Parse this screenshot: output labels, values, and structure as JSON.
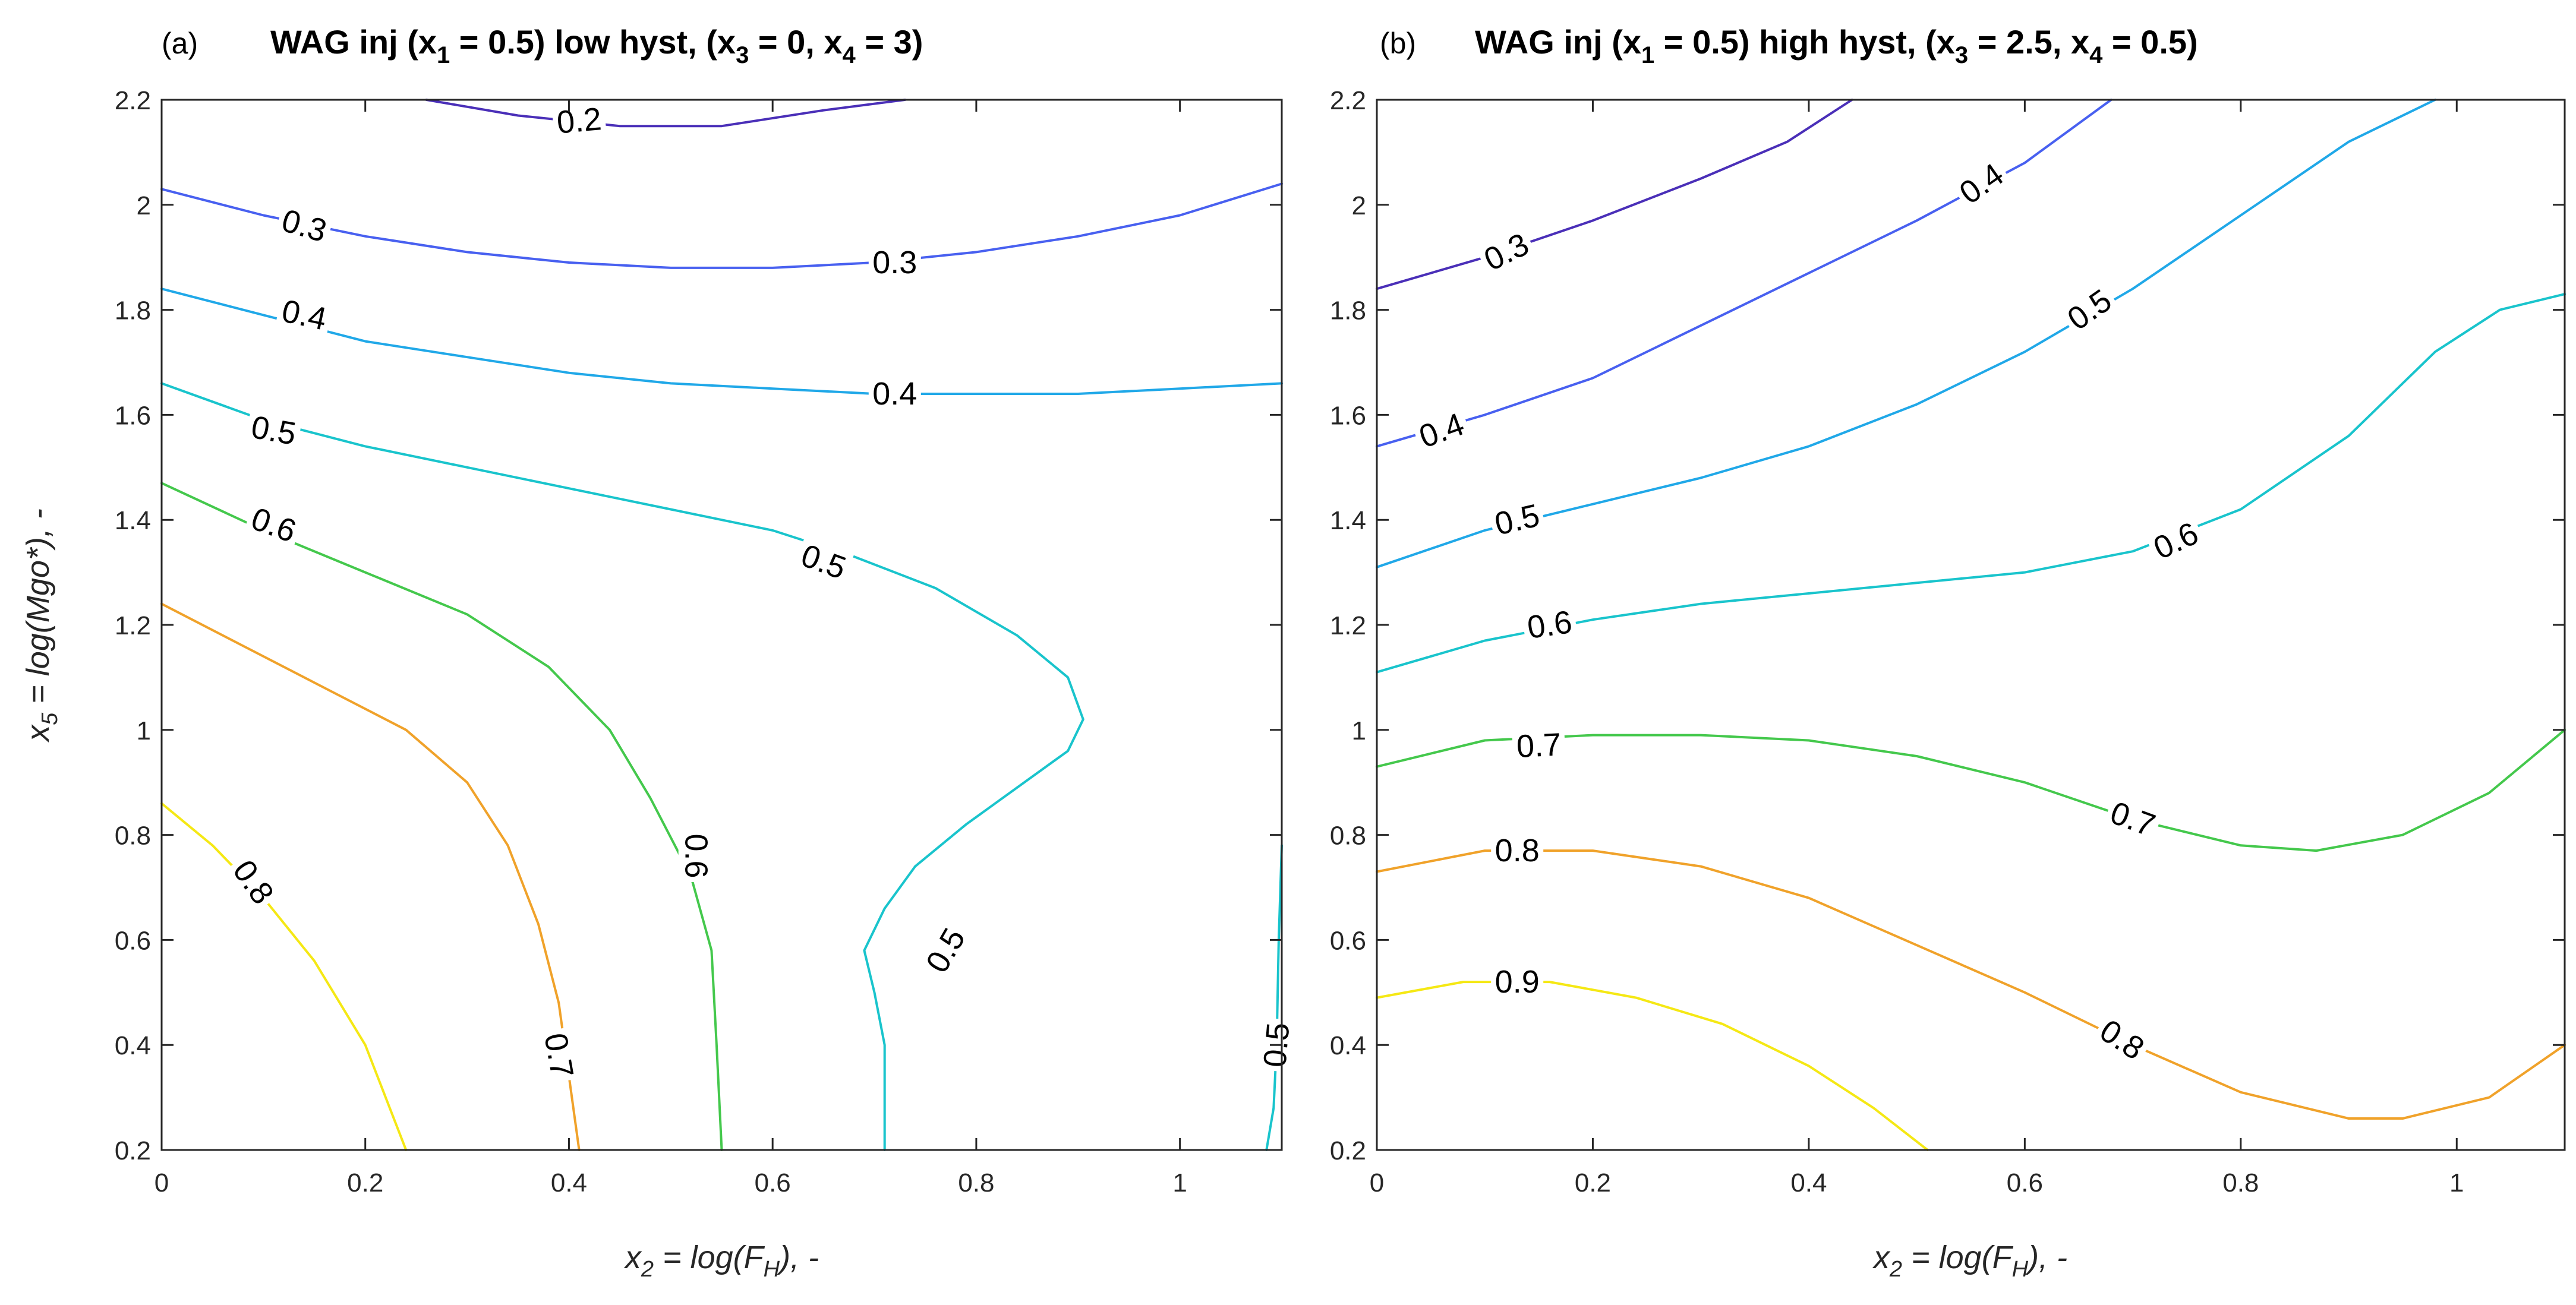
{
  "chart_data": [
    {
      "type": "contour",
      "panel_letter": "(a)",
      "title_parts": [
        "WAG inj (x",
        "1",
        " = 0.5) low hyst, (x",
        "3",
        " = 0, x",
        "4",
        " = 3)"
      ],
      "xlabel_parts": [
        "x",
        "2",
        " = log(F",
        "H",
        "), -"
      ],
      "ylabel_parts": [
        "x",
        "5",
        " = log(Mgo*), -"
      ],
      "xlim": [
        0,
        1.1
      ],
      "ylim": [
        0.2,
        2.2
      ],
      "xticks": [
        0,
        0.2,
        0.4,
        0.6,
        0.8,
        1
      ],
      "xtick_labels": [
        "0",
        "0.2",
        "0.4",
        "0.6",
        "0.8",
        "1"
      ],
      "yticks": [
        0.2,
        0.4,
        0.6,
        0.8,
        1,
        1.2,
        1.4,
        1.6,
        1.8,
        2,
        2.2
      ],
      "ytick_labels": [
        "0.2",
        "0.4",
        "0.6",
        "0.8",
        "1",
        "1.2",
        "1.4",
        "1.6",
        "1.8",
        "2",
        "2.2"
      ],
      "levels": [
        {
          "level": 0.2,
          "color": "#4a2fb8",
          "points": [
            [
              0.26,
              2.2
            ],
            [
              0.35,
              2.17
            ],
            [
              0.45,
              2.15
            ],
            [
              0.55,
              2.15
            ],
            [
              0.65,
              2.18
            ],
            [
              0.73,
              2.2
            ]
          ],
          "labels": [
            {
              "text": "0.2",
              "x": 0.41,
              "y": 2.16,
              "angle": -5
            }
          ]
        },
        {
          "level": 0.3,
          "color": "#4860f0",
          "points": [
            [
              0,
              2.03
            ],
            [
              0.1,
              1.98
            ],
            [
              0.2,
              1.94
            ],
            [
              0.3,
              1.91
            ],
            [
              0.4,
              1.89
            ],
            [
              0.5,
              1.88
            ],
            [
              0.6,
              1.88
            ],
            [
              0.7,
              1.89
            ],
            [
              0.8,
              1.91
            ],
            [
              0.9,
              1.94
            ],
            [
              1.0,
              1.98
            ],
            [
              1.1,
              2.04
            ]
          ],
          "labels": [
            {
              "text": "0.3",
              "x": 0.14,
              "y": 1.96,
              "angle": 16
            },
            {
              "text": "0.3",
              "x": 0.72,
              "y": 1.89,
              "angle": 0
            }
          ]
        },
        {
          "level": 0.4,
          "color": "#20a8e8",
          "points": [
            [
              0,
              1.84
            ],
            [
              0.1,
              1.79
            ],
            [
              0.2,
              1.74
            ],
            [
              0.3,
              1.71
            ],
            [
              0.4,
              1.68
            ],
            [
              0.5,
              1.66
            ],
            [
              0.6,
              1.65
            ],
            [
              0.7,
              1.64
            ],
            [
              0.8,
              1.64
            ],
            [
              0.9,
              1.64
            ],
            [
              1.0,
              1.65
            ],
            [
              1.1,
              1.66
            ]
          ],
          "labels": [
            {
              "text": "0.4",
              "x": 0.14,
              "y": 1.79,
              "angle": 12
            },
            {
              "text": "0.4",
              "x": 0.72,
              "y": 1.64,
              "angle": 0
            }
          ]
        },
        {
          "level": 0.5,
          "color": "#19c4cc",
          "points": [
            [
              0,
              1.66
            ],
            [
              0.1,
              1.59
            ],
            [
              0.2,
              1.54
            ],
            [
              0.3,
              1.5
            ],
            [
              0.4,
              1.46
            ],
            [
              0.5,
              1.42
            ],
            [
              0.6,
              1.38
            ],
            [
              0.68,
              1.33
            ],
            [
              0.76,
              1.27
            ],
            [
              0.84,
              1.18
            ],
            [
              0.89,
              1.1
            ],
            [
              0.905,
              1.02
            ],
            [
              0.89,
              0.96
            ],
            [
              0.84,
              0.89
            ],
            [
              0.79,
              0.82
            ],
            [
              0.74,
              0.74
            ],
            [
              0.71,
              0.66
            ],
            [
              0.69,
              0.58
            ],
            [
              0.7,
              0.5
            ],
            [
              0.71,
              0.4
            ],
            [
              0.71,
              0.3
            ],
            [
              0.71,
              0.2
            ]
          ],
          "labels": [
            {
              "text": "0.5",
              "x": 0.11,
              "y": 1.57,
              "angle": 10
            },
            {
              "text": "0.5",
              "x": 0.65,
              "y": 1.32,
              "angle": 20
            },
            {
              "text": "0.5",
              "x": 0.77,
              "y": 0.58,
              "angle": -60
            }
          ]
        },
        {
          "level": 0.5,
          "color": "#19c4cc",
          "points": [
            [
              1.1,
              0.78
            ],
            [
              1.097,
              0.6
            ],
            [
              1.095,
              0.4
            ],
            [
              1.092,
              0.28
            ],
            [
              1.085,
              0.2
            ]
          ],
          "labels": [
            {
              "text": "0.5",
              "x": 1.095,
              "y": 0.4,
              "angle": -85
            }
          ]
        },
        {
          "level": 0.6,
          "color": "#44c84c",
          "points": [
            [
              0,
              1.47
            ],
            [
              0.1,
              1.38
            ],
            [
              0.2,
              1.3
            ],
            [
              0.3,
              1.22
            ],
            [
              0.38,
              1.12
            ],
            [
              0.44,
              1.0
            ],
            [
              0.48,
              0.87
            ],
            [
              0.52,
              0.72
            ],
            [
              0.54,
              0.58
            ],
            [
              0.545,
              0.4
            ],
            [
              0.55,
              0.2
            ]
          ],
          "labels": [
            {
              "text": "0.6",
              "x": 0.11,
              "y": 1.39,
              "angle": 20
            },
            {
              "text": "0.6",
              "x": 0.525,
              "y": 0.76,
              "angle": 90
            }
          ]
        },
        {
          "level": 0.7,
          "color": "#f0a22a",
          "points": [
            [
              0,
              1.24
            ],
            [
              0.08,
              1.16
            ],
            [
              0.16,
              1.08
            ],
            [
              0.24,
              1.0
            ],
            [
              0.3,
              0.9
            ],
            [
              0.34,
              0.78
            ],
            [
              0.37,
              0.63
            ],
            [
              0.39,
              0.48
            ],
            [
              0.4,
              0.34
            ],
            [
              0.41,
              0.2
            ]
          ],
          "labels": [
            {
              "text": "0.7",
              "x": 0.39,
              "y": 0.38,
              "angle": 80
            }
          ]
        },
        {
          "level": 0.8,
          "color": "#f5e814",
          "points": [
            [
              0,
              0.86
            ],
            [
              0.05,
              0.78
            ],
            [
              0.1,
              0.68
            ],
            [
              0.15,
              0.56
            ],
            [
              0.2,
              0.4
            ],
            [
              0.24,
              0.2
            ]
          ],
          "labels": [
            {
              "text": "0.8",
              "x": 0.09,
              "y": 0.71,
              "angle": 55
            }
          ]
        }
      ]
    },
    {
      "type": "contour",
      "panel_letter": "(b)",
      "title_parts": [
        "WAG inj (x",
        "1",
        " = 0.5) high hyst, (x",
        "3",
        " = 2.5, x",
        "4",
        " = 0.5)"
      ],
      "xlabel_parts": [
        "x",
        "2",
        " = log(F",
        "H",
        "), -"
      ],
      "xlim": [
        0,
        1.1
      ],
      "ylim": [
        0.2,
        2.2
      ],
      "xticks": [
        0,
        0.2,
        0.4,
        0.6,
        0.8,
        1
      ],
      "xtick_labels": [
        "0",
        "0.2",
        "0.4",
        "0.6",
        "0.8",
        "1"
      ],
      "yticks": [
        0.2,
        0.4,
        0.6,
        0.8,
        1,
        1.2,
        1.4,
        1.6,
        1.8,
        2,
        2.2
      ],
      "ytick_labels": [
        "0.2",
        "0.4",
        "0.6",
        "0.8",
        "1",
        "1.2",
        "1.4",
        "1.6",
        "1.8",
        "2",
        "2.2"
      ],
      "levels": [
        {
          "level": 0.3,
          "color": "#4a2fb8",
          "points": [
            [
              0,
              1.84
            ],
            [
              0.1,
              1.9
            ],
            [
              0.2,
              1.97
            ],
            [
              0.3,
              2.05
            ],
            [
              0.38,
              2.12
            ],
            [
              0.44,
              2.2
            ]
          ],
          "labels": [
            {
              "text": "0.3",
              "x": 0.12,
              "y": 1.91,
              "angle": -26
            }
          ]
        },
        {
          "level": 0.4,
          "color": "#4860f0",
          "points": [
            [
              0,
              1.54
            ],
            [
              0.1,
              1.6
            ],
            [
              0.2,
              1.67
            ],
            [
              0.3,
              1.77
            ],
            [
              0.4,
              1.87
            ],
            [
              0.5,
              1.97
            ],
            [
              0.6,
              2.08
            ],
            [
              0.68,
              2.2
            ]
          ],
          "labels": [
            {
              "text": "0.4",
              "x": 0.06,
              "y": 1.57,
              "angle": -20
            },
            {
              "text": "0.4",
              "x": 0.56,
              "y": 2.04,
              "angle": -35
            }
          ]
        },
        {
          "level": 0.5,
          "color": "#20a8e8",
          "points": [
            [
              0,
              1.31
            ],
            [
              0.1,
              1.38
            ],
            [
              0.2,
              1.43
            ],
            [
              0.3,
              1.48
            ],
            [
              0.4,
              1.54
            ],
            [
              0.5,
              1.62
            ],
            [
              0.6,
              1.72
            ],
            [
              0.7,
              1.84
            ],
            [
              0.8,
              1.98
            ],
            [
              0.9,
              2.12
            ],
            [
              0.98,
              2.2
            ]
          ],
          "labels": [
            {
              "text": "0.5",
              "x": 0.13,
              "y": 1.4,
              "angle": -13
            },
            {
              "text": "0.5",
              "x": 0.66,
              "y": 1.8,
              "angle": -35
            }
          ]
        },
        {
          "level": 0.6,
          "color": "#19c4cc",
          "points": [
            [
              0,
              1.11
            ],
            [
              0.1,
              1.17
            ],
            [
              0.2,
              1.21
            ],
            [
              0.3,
              1.24
            ],
            [
              0.4,
              1.26
            ],
            [
              0.5,
              1.28
            ],
            [
              0.6,
              1.3
            ],
            [
              0.7,
              1.34
            ],
            [
              0.8,
              1.42
            ],
            [
              0.9,
              1.56
            ],
            [
              0.98,
              1.72
            ],
            [
              1.04,
              1.8
            ],
            [
              1.1,
              1.83
            ]
          ],
          "labels": [
            {
              "text": "0.6",
              "x": 0.16,
              "y": 1.2,
              "angle": -8
            },
            {
              "text": "0.6",
              "x": 0.74,
              "y": 1.36,
              "angle": -25
            }
          ]
        },
        {
          "level": 0.7,
          "color": "#44c84c",
          "points": [
            [
              0,
              0.93
            ],
            [
              0.1,
              0.98
            ],
            [
              0.2,
              0.99
            ],
            [
              0.3,
              0.99
            ],
            [
              0.4,
              0.98
            ],
            [
              0.5,
              0.95
            ],
            [
              0.6,
              0.9
            ],
            [
              0.7,
              0.83
            ],
            [
              0.8,
              0.78
            ],
            [
              0.87,
              0.77
            ],
            [
              0.95,
              0.8
            ],
            [
              1.03,
              0.88
            ],
            [
              1.1,
              1.0
            ]
          ],
          "labels": [
            {
              "text": "0.7",
              "x": 0.15,
              "y": 0.97,
              "angle": -3
            },
            {
              "text": "0.7",
              "x": 0.7,
              "y": 0.83,
              "angle": 20
            }
          ]
        },
        {
          "level": 0.8,
          "color": "#f0a22a",
          "points": [
            [
              0,
              0.73
            ],
            [
              0.1,
              0.77
            ],
            [
              0.2,
              0.77
            ],
            [
              0.3,
              0.74
            ],
            [
              0.4,
              0.68
            ],
            [
              0.5,
              0.59
            ],
            [
              0.6,
              0.5
            ],
            [
              0.7,
              0.4
            ],
            [
              0.8,
              0.31
            ],
            [
              0.9,
              0.26
            ],
            [
              0.95,
              0.26
            ],
            [
              1.03,
              0.3
            ],
            [
              1.1,
              0.4
            ]
          ],
          "labels": [
            {
              "text": "0.8",
              "x": 0.13,
              "y": 0.77,
              "angle": 0
            },
            {
              "text": "0.8",
              "x": 0.69,
              "y": 0.41,
              "angle": 33
            }
          ]
        },
        {
          "level": 0.9,
          "color": "#f5e814",
          "points": [
            [
              0,
              0.49
            ],
            [
              0.08,
              0.52
            ],
            [
              0.16,
              0.52
            ],
            [
              0.24,
              0.49
            ],
            [
              0.32,
              0.44
            ],
            [
              0.4,
              0.36
            ],
            [
              0.46,
              0.28
            ],
            [
              0.51,
              0.2
            ]
          ],
          "labels": [
            {
              "text": "0.9",
              "x": 0.13,
              "y": 0.52,
              "angle": 0
            }
          ]
        }
      ]
    }
  ]
}
